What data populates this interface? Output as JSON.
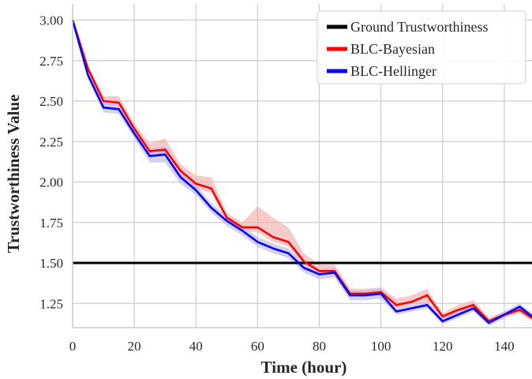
{
  "chart_data": {
    "type": "line",
    "title": "",
    "xlabel": "Time (hour)",
    "ylabel": "Trustworthiness Value",
    "xlim": [
      0,
      149
    ],
    "ylim": [
      1.1,
      3.1
    ],
    "xticks": [
      "0",
      "20",
      "40",
      "60",
      "80",
      "100",
      "120",
      "140"
    ],
    "yticks": [
      "1.25",
      "1.50",
      "1.75",
      "2.00",
      "2.25",
      "2.50",
      "2.75",
      "3.00"
    ],
    "grid": true,
    "legend_position": "top-right",
    "x": [
      0,
      5,
      10,
      15,
      20,
      25,
      30,
      35,
      40,
      45,
      50,
      55,
      60,
      65,
      70,
      75,
      80,
      85,
      90,
      95,
      100,
      105,
      110,
      115,
      120,
      125,
      130,
      135,
      140,
      145,
      149
    ],
    "series": [
      {
        "name": "Ground Trustworthiness",
        "color": "#000000",
        "x": [
          0,
          149
        ],
        "values": [
          1.5,
          1.5
        ]
      },
      {
        "name": "BLC-Bayesian",
        "color": "#ff0000",
        "band_color": "#f4a9a9",
        "values": [
          3.0,
          2.7,
          2.5,
          2.49,
          2.33,
          2.19,
          2.2,
          2.07,
          1.99,
          1.96,
          1.78,
          1.72,
          1.72,
          1.66,
          1.63,
          1.51,
          1.45,
          1.45,
          1.31,
          1.31,
          1.32,
          1.24,
          1.26,
          1.3,
          1.17,
          1.21,
          1.24,
          1.14,
          1.18,
          1.21,
          1.16
        ],
        "lower": [
          3.0,
          2.68,
          2.48,
          2.47,
          2.3,
          2.16,
          2.16,
          2.04,
          1.96,
          1.93,
          1.76,
          1.7,
          1.69,
          1.63,
          1.6,
          1.49,
          1.43,
          1.43,
          1.29,
          1.29,
          1.3,
          1.22,
          1.24,
          1.26,
          1.15,
          1.19,
          1.22,
          1.12,
          1.16,
          1.19,
          1.14
        ],
        "upper": [
          3.0,
          2.72,
          2.53,
          2.53,
          2.36,
          2.24,
          2.27,
          2.11,
          2.04,
          2.03,
          1.81,
          1.75,
          1.85,
          1.78,
          1.72,
          1.56,
          1.49,
          1.49,
          1.34,
          1.34,
          1.35,
          1.28,
          1.3,
          1.34,
          1.19,
          1.24,
          1.27,
          1.16,
          1.2,
          1.23,
          1.18
        ]
      },
      {
        "name": "BLC-Hellinger",
        "color": "#0000ff",
        "band_color": "#b8b0ea",
        "values": [
          3.0,
          2.66,
          2.46,
          2.45,
          2.3,
          2.16,
          2.17,
          2.03,
          1.95,
          1.84,
          1.76,
          1.7,
          1.63,
          1.59,
          1.56,
          1.47,
          1.43,
          1.44,
          1.3,
          1.3,
          1.31,
          1.2,
          1.22,
          1.24,
          1.14,
          1.18,
          1.22,
          1.13,
          1.18,
          1.23,
          1.17
        ],
        "lower": [
          3.0,
          2.64,
          2.43,
          2.42,
          2.27,
          2.12,
          2.12,
          1.99,
          1.92,
          1.81,
          1.73,
          1.67,
          1.6,
          1.56,
          1.53,
          1.44,
          1.4,
          1.41,
          1.27,
          1.27,
          1.28,
          1.18,
          1.2,
          1.22,
          1.12,
          1.16,
          1.2,
          1.11,
          1.16,
          1.21,
          1.15
        ],
        "upper": [
          3.0,
          2.68,
          2.49,
          2.48,
          2.33,
          2.2,
          2.22,
          2.07,
          1.98,
          1.87,
          1.79,
          1.73,
          1.66,
          1.62,
          1.59,
          1.5,
          1.46,
          1.47,
          1.33,
          1.33,
          1.34,
          1.22,
          1.24,
          1.26,
          1.16,
          1.2,
          1.24,
          1.15,
          1.2,
          1.25,
          1.19
        ]
      }
    ]
  }
}
